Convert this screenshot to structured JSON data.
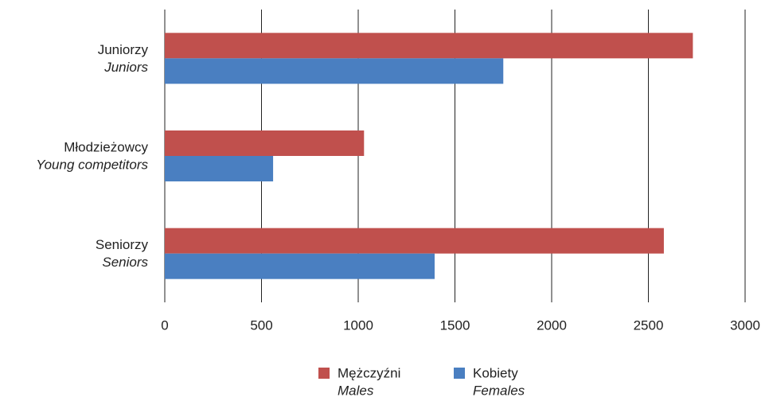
{
  "chart_data": {
    "type": "hbar",
    "categories": [
      "Juniorzy",
      "Młodzieżowcy",
      "Seniorzy"
    ],
    "categories_en": [
      "Juniors",
      "Young competitors",
      "Seniors"
    ],
    "series": [
      {
        "name": "Mężczyźni",
        "name_en": "Males",
        "color": "#c0504d",
        "values": [
          2730,
          1030,
          2580
        ]
      },
      {
        "name": "Kobiety",
        "name_en": "Females",
        "color": "#4a7fc1",
        "values": [
          1750,
          560,
          1395
        ]
      }
    ],
    "xlim": [
      0,
      3000
    ],
    "xticks": [
      0,
      500,
      1000,
      1500,
      2000,
      2500,
      3000
    ],
    "grid": true
  }
}
